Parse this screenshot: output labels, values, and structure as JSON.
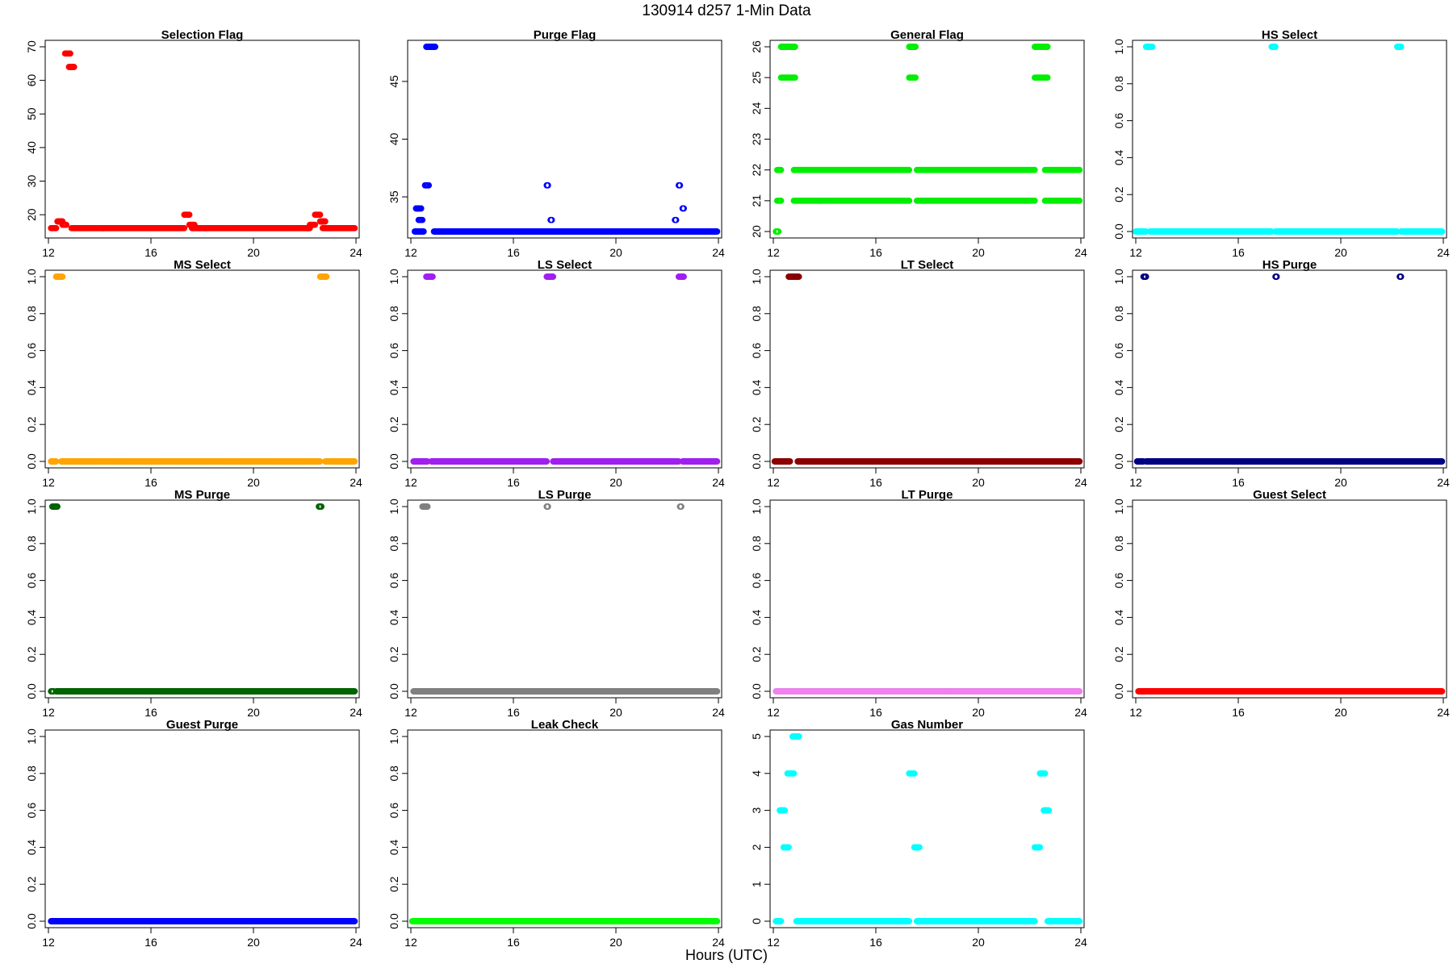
{
  "figure": {
    "title": "130914   d257   1-Min Data",
    "xlabel": "Hours (UTC)"
  },
  "chart_data": [
    {
      "type": "scatter",
      "title": "Selection Flag",
      "color": "#ff0000",
      "xlim": [
        12,
        24
      ],
      "xticks": [
        12,
        16,
        20,
        24
      ],
      "ylim": [
        15,
        70
      ],
      "yticks": [
        10,
        20,
        30,
        40,
        50,
        60,
        70
      ],
      "segments": [
        [
          12.1,
          12.3,
          16
        ],
        [
          12.35,
          12.55,
          18
        ],
        [
          12.55,
          12.7,
          17
        ],
        [
          12.65,
          12.85,
          68
        ],
        [
          12.8,
          13.0,
          64
        ],
        [
          12.9,
          17.3,
          16
        ],
        [
          17.3,
          17.5,
          20
        ],
        [
          17.5,
          17.7,
          17
        ],
        [
          17.6,
          22.2,
          16
        ],
        [
          22.2,
          22.4,
          17
        ],
        [
          22.4,
          22.6,
          20
        ],
        [
          22.6,
          22.8,
          18
        ],
        [
          22.7,
          23.95,
          16
        ]
      ]
    },
    {
      "type": "scatter",
      "title": "Purge Flag",
      "color": "#0000ff",
      "xlim": [
        12,
        24
      ],
      "xticks": [
        12,
        16,
        20,
        24
      ],
      "ylim": [
        32,
        48
      ],
      "yticks": [
        35,
        40,
        45
      ],
      "segments": [
        [
          12.15,
          12.5,
          32
        ],
        [
          12.2,
          12.4,
          34
        ],
        [
          12.3,
          12.45,
          33
        ],
        [
          12.55,
          12.7,
          36
        ],
        [
          12.6,
          12.95,
          48
        ],
        [
          12.9,
          23.95,
          32
        ],
        [
          17.3,
          17.35,
          36
        ],
        [
          17.45,
          17.5,
          33
        ],
        [
          22.3,
          22.35,
          33
        ],
        [
          22.45,
          22.5,
          36
        ],
        [
          22.6,
          22.65,
          34
        ]
      ]
    },
    {
      "type": "scatter",
      "title": "General Flag",
      "color": "#00ee00",
      "xlim": [
        12,
        24
      ],
      "xticks": [
        12,
        16,
        20,
        24
      ],
      "ylim": [
        20,
        26
      ],
      "yticks": [
        20,
        21,
        22,
        23,
        24,
        25,
        26
      ],
      "segments": [
        [
          12.1,
          12.2,
          20
        ],
        [
          12.15,
          12.3,
          21
        ],
        [
          12.15,
          12.3,
          22
        ],
        [
          12.3,
          12.85,
          26
        ],
        [
          12.3,
          12.85,
          25
        ],
        [
          12.8,
          17.3,
          21
        ],
        [
          12.8,
          17.3,
          22
        ],
        [
          17.3,
          17.55,
          26
        ],
        [
          17.3,
          17.55,
          25
        ],
        [
          17.6,
          22.2,
          21
        ],
        [
          17.6,
          22.2,
          22
        ],
        [
          22.2,
          22.7,
          26
        ],
        [
          22.2,
          22.7,
          25
        ],
        [
          22.6,
          23.95,
          21
        ],
        [
          22.6,
          23.95,
          22
        ]
      ]
    },
    {
      "type": "scatter",
      "title": "HS Select",
      "color": "#00ffff",
      "xlim": [
        12,
        24
      ],
      "xticks": [
        12,
        16,
        20,
        24
      ],
      "ylim": [
        0,
        1
      ],
      "yticks": [
        0.0,
        0.2,
        0.4,
        0.6,
        0.8,
        1.0
      ],
      "segments": [
        [
          12.0,
          12.4,
          0
        ],
        [
          12.4,
          12.65,
          1
        ],
        [
          12.55,
          17.3,
          0
        ],
        [
          17.3,
          17.45,
          1
        ],
        [
          17.45,
          22.2,
          0
        ],
        [
          22.2,
          22.35,
          1
        ],
        [
          22.35,
          23.95,
          0
        ]
      ]
    },
    {
      "type": "scatter",
      "title": "MS Select",
      "color": "#ffa500",
      "xlim": [
        12,
        24
      ],
      "xticks": [
        12,
        16,
        20,
        24
      ],
      "ylim": [
        0,
        1
      ],
      "yticks": [
        0.0,
        0.2,
        0.4,
        0.6,
        0.8,
        1.0
      ],
      "segments": [
        [
          12.1,
          12.3,
          0
        ],
        [
          12.3,
          12.55,
          1
        ],
        [
          12.5,
          22.6,
          0
        ],
        [
          22.6,
          22.85,
          1
        ],
        [
          22.8,
          23.95,
          0
        ]
      ]
    },
    {
      "type": "scatter",
      "title": "LS Select",
      "color": "#a020f0",
      "xlim": [
        12,
        24
      ],
      "xticks": [
        12,
        16,
        20,
        24
      ],
      "ylim": [
        0,
        1
      ],
      "yticks": [
        0.0,
        0.2,
        0.4,
        0.6,
        0.8,
        1.0
      ],
      "segments": [
        [
          12.1,
          12.65,
          0
        ],
        [
          12.6,
          12.85,
          1
        ],
        [
          12.8,
          17.3,
          0
        ],
        [
          17.3,
          17.55,
          1
        ],
        [
          17.55,
          22.45,
          0
        ],
        [
          22.45,
          22.65,
          1
        ],
        [
          22.6,
          23.95,
          0
        ]
      ]
    },
    {
      "type": "scatter",
      "title": "LT Select",
      "color": "#8b0000",
      "xlim": [
        12,
        24
      ],
      "xticks": [
        12,
        16,
        20,
        24
      ],
      "ylim": [
        0,
        1
      ],
      "yticks": [
        0.0,
        0.2,
        0.4,
        0.6,
        0.8,
        1.0
      ],
      "segments": [
        [
          12.05,
          12.65,
          0
        ],
        [
          12.6,
          13.0,
          1
        ],
        [
          12.95,
          23.95,
          0
        ]
      ]
    },
    {
      "type": "scatter",
      "title": "HS Purge",
      "color": "#000080",
      "xlim": [
        12,
        24
      ],
      "xticks": [
        12,
        16,
        20,
        24
      ],
      "ylim": [
        0,
        1
      ],
      "yticks": [
        0.0,
        0.2,
        0.4,
        0.6,
        0.8,
        1.0
      ],
      "segments": [
        [
          12.05,
          12.3,
          0
        ],
        [
          12.3,
          12.4,
          1
        ],
        [
          12.4,
          23.95,
          0
        ],
        [
          17.45,
          17.5,
          1
        ],
        [
          22.3,
          22.35,
          1
        ]
      ]
    },
    {
      "type": "scatter",
      "title": "MS Purge",
      "color": "#006400",
      "xlim": [
        12,
        24
      ],
      "xticks": [
        12,
        16,
        20,
        24
      ],
      "ylim": [
        0,
        1
      ],
      "yticks": [
        0.0,
        0.2,
        0.4,
        0.6,
        0.8,
        1.0
      ],
      "segments": [
        [
          12.1,
          12.2,
          0
        ],
        [
          12.15,
          12.35,
          1
        ],
        [
          12.3,
          23.95,
          0
        ],
        [
          22.55,
          22.65,
          1
        ]
      ]
    },
    {
      "type": "scatter",
      "title": "LS Purge",
      "color": "#808080",
      "xlim": [
        12,
        24
      ],
      "xticks": [
        12,
        16,
        20,
        24
      ],
      "ylim": [
        0,
        1
      ],
      "yticks": [
        0.0,
        0.2,
        0.4,
        0.6,
        0.8,
        1.0
      ],
      "segments": [
        [
          12.1,
          23.95,
          0
        ],
        [
          12.45,
          12.65,
          1
        ],
        [
          17.3,
          17.35,
          1
        ],
        [
          22.5,
          22.55,
          1
        ]
      ]
    },
    {
      "type": "scatter",
      "title": "LT Purge",
      "color": "#ee82ee",
      "xlim": [
        12,
        24
      ],
      "xticks": [
        12,
        16,
        20,
        24
      ],
      "ylim": [
        0,
        1
      ],
      "yticks": [
        0.0,
        0.2,
        0.4,
        0.6,
        0.8,
        1.0
      ],
      "segments": [
        [
          12.1,
          23.95,
          0
        ]
      ]
    },
    {
      "type": "scatter",
      "title": "Guest Select",
      "color": "#ff0000",
      "xlim": [
        12,
        24
      ],
      "xticks": [
        12,
        16,
        20,
        24
      ],
      "ylim": [
        0,
        1
      ],
      "yticks": [
        0.0,
        0.2,
        0.4,
        0.6,
        0.8,
        1.0
      ],
      "segments": [
        [
          12.1,
          23.95,
          0
        ]
      ]
    },
    {
      "type": "scatter",
      "title": "Guest Purge",
      "color": "#0000ff",
      "xlim": [
        12,
        24
      ],
      "xticks": [
        12,
        16,
        20,
        24
      ],
      "ylim": [
        0,
        1
      ],
      "yticks": [
        0.0,
        0.2,
        0.4,
        0.6,
        0.8,
        1.0
      ],
      "segments": [
        [
          12.1,
          23.95,
          0
        ]
      ]
    },
    {
      "type": "scatter",
      "title": "Leak Check",
      "color": "#00ff00",
      "xlim": [
        12,
        24
      ],
      "xticks": [
        12,
        16,
        20,
        24
      ],
      "ylim": [
        0,
        1
      ],
      "yticks": [
        0.0,
        0.2,
        0.4,
        0.6,
        0.8,
        1.0
      ],
      "segments": [
        [
          12.05,
          23.95,
          0
        ]
      ]
    },
    {
      "type": "scatter",
      "title": "Gas Number",
      "color": "#00ffff",
      "xlim": [
        12,
        24
      ],
      "xticks": [
        12,
        16,
        20,
        24
      ],
      "ylim": [
        0,
        5
      ],
      "yticks": [
        0,
        1,
        2,
        3,
        4,
        5
      ],
      "segments": [
        [
          12.1,
          12.3,
          0
        ],
        [
          12.25,
          12.45,
          3
        ],
        [
          12.4,
          12.6,
          2
        ],
        [
          12.55,
          12.8,
          4
        ],
        [
          12.75,
          13.0,
          5
        ],
        [
          12.9,
          17.3,
          0
        ],
        [
          17.3,
          17.5,
          4
        ],
        [
          17.5,
          17.7,
          2
        ],
        [
          17.6,
          22.2,
          0
        ],
        [
          22.2,
          22.4,
          2
        ],
        [
          22.4,
          22.6,
          4
        ],
        [
          22.55,
          22.75,
          3
        ],
        [
          22.7,
          23.95,
          0
        ]
      ]
    }
  ]
}
